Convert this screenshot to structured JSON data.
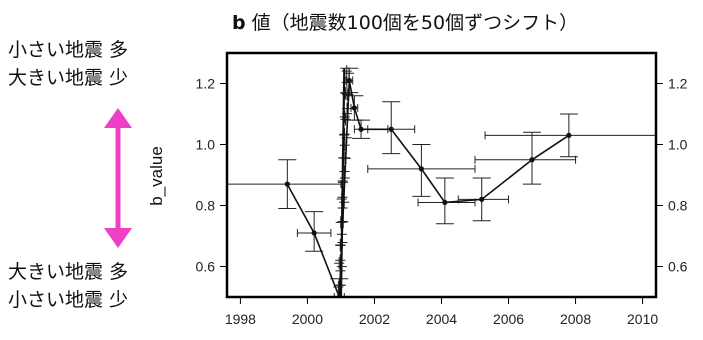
{
  "chart_data": {
    "type": "line",
    "title_bold": "b",
    "title_rest": " 値（地震数100個を50個ずつシフト）",
    "xlabel": "",
    "ylabel": "b_value",
    "xlim": [
      1997.6,
      2010.4
    ],
    "ylim": [
      0.5,
      1.3
    ],
    "xticks": [
      1998,
      2000,
      2002,
      2004,
      2006,
      2008,
      2010
    ],
    "yticks": [
      0.6,
      0.8,
      1.0,
      1.2
    ],
    "ytick_labels": [
      "0.6",
      "0.8",
      "1.0",
      "1.2"
    ],
    "grid": false,
    "colors": {
      "line": "#111111",
      "errorbar": "#222222",
      "arrow": "#ee3fc6",
      "frame": "#000000"
    },
    "series": [
      {
        "points": [
          {
            "x": 1999.4,
            "y": 0.87,
            "xerr": [
              1997.6,
              2001.0
            ],
            "yerr": [
              0.79,
              0.95
            ]
          },
          {
            "x": 2000.2,
            "y": 0.71,
            "xerr": [
              1999.7,
              2000.7
            ],
            "yerr": [
              0.65,
              0.78
            ]
          },
          {
            "x": 2000.95,
            "y": 0.5,
            "xerr": [
              2000.8,
              2001.1
            ],
            "yerr": [
              0.44,
              0.56
            ]
          },
          {
            "x": 2001.25,
            "y": 1.21,
            "xerr": [
              2001.15,
              2001.35
            ],
            "yerr": [
              1.17,
              1.25
            ]
          },
          {
            "x": 2001.4,
            "y": 1.12,
            "xerr": [
              2001.3,
              2001.5
            ],
            "yerr": [
              1.08,
              1.16
            ]
          },
          {
            "x": 2001.6,
            "y": 1.05,
            "xerr": [
              2001.4,
              2002.4
            ],
            "yerr": [
              1.02,
              1.08
            ]
          },
          {
            "x": 2002.5,
            "y": 1.05,
            "xerr": [
              2001.8,
              2003.2
            ],
            "yerr": [
              0.97,
              1.14
            ]
          },
          {
            "x": 2003.4,
            "y": 0.92,
            "xerr": [
              2001.8,
              2005.0
            ],
            "yerr": [
              0.83,
              1.0
            ]
          },
          {
            "x": 2004.1,
            "y": 0.81,
            "xerr": [
              2003.3,
              2005.0
            ],
            "yerr": [
              0.74,
              0.89
            ]
          },
          {
            "x": 2005.2,
            "y": 0.82,
            "xerr": [
              2004.5,
              2006.0
            ],
            "yerr": [
              0.75,
              0.89
            ]
          },
          {
            "x": 2006.7,
            "y": 0.95,
            "xerr": [
              2005.0,
              2008.0
            ],
            "yerr": [
              0.87,
              1.04
            ]
          },
          {
            "x": 2007.8,
            "y": 1.03,
            "xerr": [
              2005.3,
              2010.4
            ],
            "yerr": [
              0.96,
              1.1
            ]
          }
        ]
      }
    ],
    "dense_cluster": {
      "x": [
        2000.95,
        2001.2
      ],
      "y": [
        0.5,
        1.24
      ],
      "count": 40,
      "xerr_halfwidth": 0.15
    }
  },
  "legend": {
    "top_line1": "小さい地震 多",
    "top_line2": "大きい地震 少",
    "bottom_line1": "大きい地震 多",
    "bottom_line2": "小さい地震 少"
  }
}
